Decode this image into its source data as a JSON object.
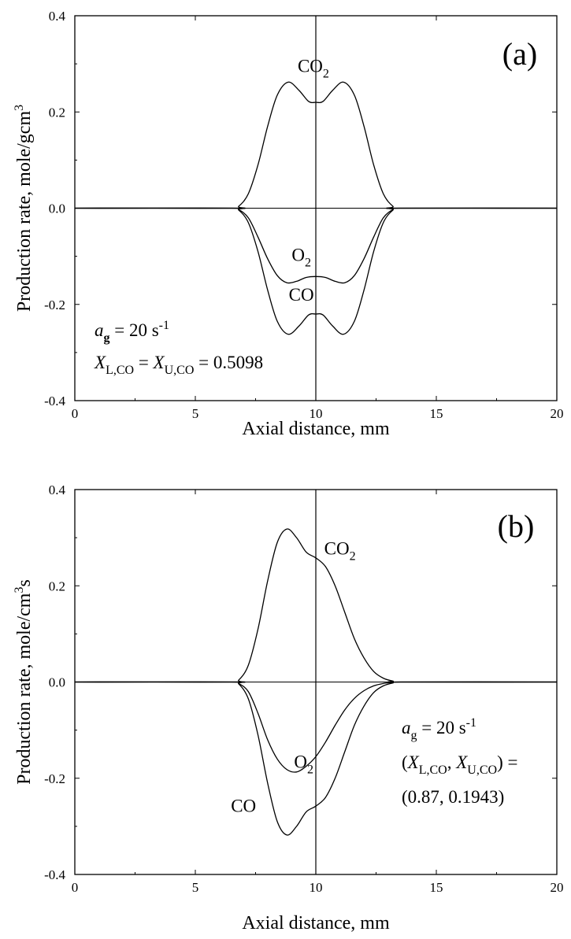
{
  "chart_data": [
    {
      "type": "line",
      "panel_label": "(a)",
      "xlabel": "Axial distance, mm",
      "ylabel": "Production rate, mole/gcm",
      "ylabel_sup": "3",
      "xlim": [
        0,
        20
      ],
      "ylim": [
        -0.4,
        0.4
      ],
      "x_ticks": [
        "0",
        "5",
        "10",
        "15",
        "20"
      ],
      "y_ticks": [
        "-0.4",
        "-0.2",
        "0.0",
        "0.2",
        "0.4"
      ],
      "vertical_line_x": 10,
      "grid": false,
      "series": [
        {
          "name": "CO2",
          "x": [
            0,
            6.5,
            6.8,
            7.2,
            7.6,
            8.0,
            8.4,
            8.85,
            9.3,
            9.7,
            10.0,
            10.3,
            10.7,
            11.15,
            11.6,
            12.0,
            12.4,
            12.8,
            13.2,
            13.5,
            20
          ],
          "y": [
            0,
            0,
            0.004,
            0.03,
            0.09,
            0.17,
            0.235,
            0.262,
            0.245,
            0.222,
            0.22,
            0.222,
            0.245,
            0.262,
            0.235,
            0.17,
            0.09,
            0.03,
            0.004,
            0,
            0
          ]
        },
        {
          "name": "O2",
          "x": [
            0,
            6.5,
            6.8,
            7.2,
            7.6,
            8.0,
            8.4,
            8.8,
            9.2,
            9.6,
            10.0,
            10.4,
            10.8,
            11.2,
            11.6,
            12.0,
            12.4,
            12.8,
            13.2,
            13.5,
            20
          ],
          "y": [
            0,
            0,
            -0.003,
            -0.02,
            -0.06,
            -0.105,
            -0.14,
            -0.155,
            -0.152,
            -0.144,
            -0.142,
            -0.144,
            -0.152,
            -0.155,
            -0.14,
            -0.105,
            -0.06,
            -0.02,
            -0.003,
            0,
            0
          ]
        },
        {
          "name": "CO",
          "x": [
            0,
            6.5,
            6.8,
            7.2,
            7.6,
            8.0,
            8.4,
            8.85,
            9.3,
            9.7,
            10.0,
            10.3,
            10.7,
            11.15,
            11.6,
            12.0,
            12.4,
            12.8,
            13.2,
            13.5,
            20
          ],
          "y": [
            0,
            0,
            -0.004,
            -0.03,
            -0.09,
            -0.17,
            -0.235,
            -0.262,
            -0.245,
            -0.222,
            -0.22,
            -0.222,
            -0.245,
            -0.262,
            -0.235,
            -0.17,
            -0.09,
            -0.03,
            -0.004,
            0,
            0
          ]
        }
      ],
      "curve_labels": [
        {
          "base": "CO",
          "sub": "2",
          "x": 9.9,
          "y": 0.283
        },
        {
          "base": "O",
          "sub": "2",
          "x": 9.4,
          "y": -0.11
        },
        {
          "base": "CO",
          "sub": "",
          "x": 9.4,
          "y": -0.192
        }
      ],
      "annotation_lines": [
        {
          "parts": [
            {
              "t": "a",
              "i": true
            },
            {
              "t": "g",
              "sub": true,
              "b": true
            },
            {
              "t": " = 20 s"
            },
            {
              "t": "-1",
              "sup": true
            }
          ]
        },
        {
          "parts": [
            {
              "t": "X",
              "i": true
            },
            {
              "t": "L,CO",
              "sub": true
            },
            {
              "t": " = "
            },
            {
              "t": "X",
              "i": true
            },
            {
              "t": "U,CO",
              "sub": true
            },
            {
              "t": " = 0.5098"
            }
          ]
        }
      ]
    },
    {
      "type": "line",
      "panel_label": "(b)",
      "xlabel": "Axial distance, mm",
      "ylabel": "Production rate, mole/cm",
      "ylabel_sup": "3",
      "ylabel_tail": "s",
      "xlim": [
        0,
        20
      ],
      "ylim": [
        -0.4,
        0.4
      ],
      "x_ticks": [
        "0",
        "5",
        "10",
        "15",
        "20"
      ],
      "y_ticks": [
        "-0.4",
        "-0.2",
        "0.0",
        "0.2",
        "0.4"
      ],
      "vertical_line_x": 10,
      "grid": false,
      "series": [
        {
          "name": "CO2",
          "x": [
            0,
            6.5,
            6.8,
            7.2,
            7.6,
            8.0,
            8.4,
            8.8,
            9.2,
            9.6,
            10.0,
            10.4,
            10.8,
            11.2,
            11.6,
            12.0,
            12.4,
            12.8,
            13.2,
            13.6,
            20
          ],
          "y": [
            0,
            0,
            0.004,
            0.035,
            0.11,
            0.21,
            0.29,
            0.318,
            0.3,
            0.27,
            0.258,
            0.24,
            0.2,
            0.145,
            0.09,
            0.05,
            0.022,
            0.008,
            0.002,
            0,
            0
          ]
        },
        {
          "name": "O2",
          "x": [
            0,
            6.5,
            6.8,
            7.2,
            7.6,
            8.0,
            8.4,
            8.8,
            9.2,
            9.6,
            10.0,
            10.4,
            10.8,
            11.2,
            11.6,
            12.0,
            12.4,
            12.8,
            13.2,
            13.6,
            20
          ],
          "y": [
            0,
            0,
            -0.003,
            -0.02,
            -0.065,
            -0.12,
            -0.16,
            -0.182,
            -0.187,
            -0.175,
            -0.155,
            -0.125,
            -0.09,
            -0.058,
            -0.034,
            -0.018,
            -0.008,
            -0.003,
            -0.001,
            0,
            0
          ]
        },
        {
          "name": "CO",
          "x": [
            0,
            6.5,
            6.8,
            7.2,
            7.6,
            8.0,
            8.4,
            8.8,
            9.2,
            9.6,
            10.0,
            10.4,
            10.8,
            11.2,
            11.6,
            12.0,
            12.4,
            12.8,
            13.2,
            13.6,
            20
          ],
          "y": [
            0,
            0,
            -0.004,
            -0.035,
            -0.11,
            -0.21,
            -0.29,
            -0.318,
            -0.3,
            -0.27,
            -0.258,
            -0.24,
            -0.2,
            -0.145,
            -0.09,
            -0.05,
            -0.022,
            -0.008,
            -0.002,
            0,
            0
          ]
        }
      ],
      "curve_labels": [
        {
          "base": "CO",
          "sub": "2",
          "x": 11.0,
          "y": 0.265
        },
        {
          "base": "O",
          "sub": "2",
          "x": 9.5,
          "y": -0.178
        },
        {
          "base": "CO",
          "sub": "",
          "x": 7.0,
          "y": -0.27
        }
      ],
      "annotation_lines": [
        {
          "parts": [
            {
              "t": "a",
              "i": true
            },
            {
              "t": "g",
              "sub": true
            },
            {
              "t": " = 20 s"
            },
            {
              "t": "-1",
              "sup": true
            }
          ]
        },
        {
          "parts": [
            {
              "t": "("
            },
            {
              "t": "X",
              "i": true
            },
            {
              "t": "L,CO",
              "sub": true
            },
            {
              "t": ", "
            },
            {
              "t": "X",
              "i": true
            },
            {
              "t": "U,CO",
              "sub": true
            },
            {
              "t": ") ="
            }
          ]
        },
        {
          "parts": [
            {
              "t": "(0.87, 0.1943)"
            }
          ]
        }
      ]
    }
  ]
}
